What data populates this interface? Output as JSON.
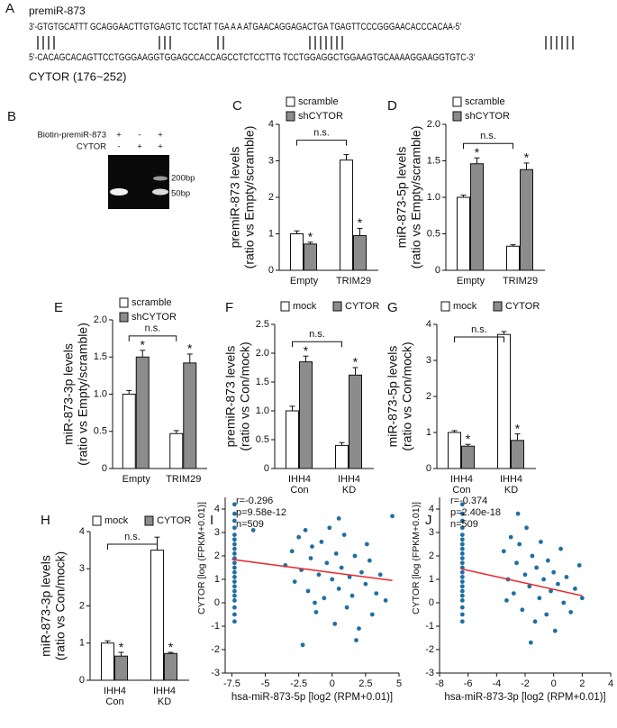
{
  "panel_a": {
    "label": "A",
    "title": "premiR-873",
    "strand1": "3'-GTGTGCATTT GCAGGAACTTGTGAGTC TCCTAT TGA A A ATGAACAGGAGACTGA TGAGTTCCCGGGAACACCCACAA-5'",
    "strand2": "5'-CACAGCACAGTTCCTGGGAAGGTGGAGCCACCAGCCTCTCCTTG TCCTGGAGGCTGGAAGTGCAAAAGGAAGGTGTC-3'",
    "caption": "CYTOR (176~252)"
  },
  "panel_b": {
    "label": "B",
    "rows": [
      {
        "label": "Biotin-premiR-873",
        "signs": [
          "+",
          "-",
          "+"
        ]
      },
      {
        "label": "CYTOR",
        "signs": [
          "-",
          "+",
          "+"
        ]
      }
    ],
    "markers": [
      "200bp",
      "50bp"
    ]
  },
  "chart_data": [
    {
      "type": "bar",
      "panel": "C",
      "ylabel": [
        "premiR-873 levels",
        "(ratio vs Empty/scramble)"
      ],
      "categories": [
        "Empty",
        "TRIM29"
      ],
      "series": [
        {
          "name": "scramble",
          "color": "#ffffff",
          "values": [
            1.0,
            3.02
          ],
          "errors": [
            0.08,
            0.15
          ]
        },
        {
          "name": "shCYTOR",
          "color": "#8c8c8c",
          "values": [
            0.72,
            0.95
          ],
          "errors": [
            0.05,
            0.2
          ],
          "stars": [
            "*",
            "*"
          ]
        }
      ],
      "ylim": [
        0,
        4
      ],
      "yticks": [
        0,
        1,
        2,
        3,
        4
      ],
      "bracket": "n.s."
    },
    {
      "type": "bar",
      "panel": "D",
      "ylabel": [
        "miR-873-5p levels",
        "(ratio vs Empty/scramble)"
      ],
      "categories": [
        "Empty",
        "TRIM29"
      ],
      "series": [
        {
          "name": "scramble",
          "color": "#ffffff",
          "values": [
            1.0,
            0.33
          ],
          "errors": [
            0.03,
            0.02
          ]
        },
        {
          "name": "shCYTOR",
          "color": "#8c8c8c",
          "values": [
            1.46,
            1.38
          ],
          "errors": [
            0.08,
            0.09
          ],
          "stars": [
            "*",
            "*"
          ]
        }
      ],
      "ylim": [
        0,
        2
      ],
      "yticks": [
        0,
        0.5,
        {
          "value": 1,
          "label": "1.0"
        },
        1.5,
        {
          "value": 2,
          "label": "2.0"
        }
      ],
      "bracket": "n.s."
    },
    {
      "type": "bar",
      "panel": "E",
      "ylabel": [
        "miR-873-3p levels",
        "(ratio vs Empty/scramble)"
      ],
      "categories": [
        "Empty",
        "TRIM29"
      ],
      "series": [
        {
          "name": "scramble",
          "color": "#ffffff",
          "values": [
            1.0,
            0.47
          ],
          "errors": [
            0.05,
            0.04
          ]
        },
        {
          "name": "shCYTOR",
          "color": "#8c8c8c",
          "values": [
            1.5,
            1.42
          ],
          "errors": [
            0.09,
            0.12
          ],
          "stars": [
            "*",
            "*"
          ]
        }
      ],
      "ylim": [
        0,
        2
      ],
      "yticks": [
        0,
        0.5,
        {
          "value": 1,
          "label": "1.0"
        },
        1.5,
        {
          "value": 2,
          "label": "2.0"
        }
      ],
      "bracket": "n.s."
    },
    {
      "type": "bar",
      "panel": "F",
      "ylabel": [
        "premiR-873 levels",
        "(ratio vs Con/mock)"
      ],
      "categories": [
        "IHH4 Con",
        "IHH4 KD"
      ],
      "series": [
        {
          "name": "mock",
          "color": "#ffffff",
          "values": [
            1.0,
            0.4
          ],
          "errors": [
            0.08,
            0.05
          ]
        },
        {
          "name": "CYTOR",
          "color": "#8c8c8c",
          "values": [
            1.85,
            1.62
          ],
          "errors": [
            0.1,
            0.13
          ],
          "stars": [
            "*",
            "*"
          ]
        }
      ],
      "ylim": [
        0,
        2.5
      ],
      "yticks": [
        0,
        0.5,
        {
          "value": 1,
          "label": "1.0"
        },
        1.5,
        {
          "value": 2,
          "label": "2.0"
        },
        2.5
      ],
      "bracket": "n.s."
    },
    {
      "type": "bar",
      "panel": "G",
      "ylabel": [
        "miR-873-5p levels",
        "(ratio vs Con/mock)"
      ],
      "categories": [
        "IHH4 Con",
        "IHH4 KD"
      ],
      "series": [
        {
          "name": "mock",
          "color": "#ffffff",
          "values": [
            1.0,
            3.72
          ],
          "errors": [
            0.05,
            0.08
          ]
        },
        {
          "name": "CYTOR",
          "color": "#8c8c8c",
          "values": [
            0.62,
            0.78
          ],
          "errors": [
            0.05,
            0.18
          ],
          "stars": [
            "*",
            "*"
          ]
        }
      ],
      "ylim": [
        0,
        4
      ],
      "yticks": [
        0,
        1,
        2,
        3,
        4
      ],
      "bracket": "n.s."
    },
    {
      "type": "bar",
      "panel": "H",
      "ylabel": [
        "miR-873-3p levels",
        "(ratio vs Con/mock)"
      ],
      "categories": [
        "IHH4 Con",
        "IHH4 KD"
      ],
      "series": [
        {
          "name": "mock",
          "color": "#ffffff",
          "values": [
            1.0,
            3.5
          ],
          "errors": [
            0.06,
            0.35
          ]
        },
        {
          "name": "CYTOR",
          "color": "#8c8c8c",
          "values": [
            0.65,
            0.72
          ],
          "errors": [
            0.1,
            0.03
          ],
          "stars": [
            "*",
            "*"
          ]
        }
      ],
      "ylim": [
        0,
        4
      ],
      "yticks": [
        0,
        1,
        2,
        3,
        4
      ],
      "bracket": "n.s."
    },
    {
      "type": "scatter",
      "panel": "I",
      "xlabel": "hsa-miR-873-5p [log2 (RPM+0.01)]",
      "ylabel": "CYTOR [log (FPKM+0.01)]",
      "annotations": [
        "r=-0.296",
        "p=9.58e-12",
        "n=509"
      ],
      "color": "#1f6fa3",
      "fit_color": "#e8262b",
      "x": [
        -7.3,
        -7.3,
        -7.3,
        -7.3,
        -7.3,
        -7.3,
        -7.3,
        -7.3,
        -7.3,
        -7.3,
        -7.3,
        -7.3,
        -7.3,
        -7.3,
        -7.3,
        -7.3,
        -7.3,
        -7.3,
        -7.3,
        -7.3,
        -7.3,
        -7.3,
        -3.5,
        -3,
        -2.8,
        -2.5,
        -2.3,
        -2,
        -1.8,
        -1.6,
        -1.5,
        -1.2,
        -1,
        -0.8,
        -0.6,
        -0.4,
        -0.2,
        0,
        0.2,
        0.3,
        0.5,
        0.7,
        0.9,
        1.1,
        1.3,
        1.5,
        1.7,
        2,
        2.2,
        2.5,
        2.8,
        3,
        3.3,
        3.6,
        4,
        4.5,
        -2.2,
        -5.9,
        0.5,
        1.8,
        -1.3,
        2.6
      ],
      "y": [
        4.2,
        3.8,
        3.5,
        3.2,
        2.9,
        2.7,
        2.5,
        2.3,
        2.1,
        1.9,
        1.7,
        1.5,
        1.3,
        1.1,
        0.9,
        0.7,
        0.5,
        0.3,
        0.1,
        -0.2,
        -0.5,
        -0.8,
        1.6,
        2.2,
        0.9,
        2.8,
        1.4,
        3.1,
        0.5,
        1.9,
        2.4,
        -0.4,
        1.2,
        2.6,
        0.2,
        1.7,
        3.2,
        1.0,
        -0.9,
        2.1,
        0.6,
        1.5,
        2.9,
        -0.2,
        1.1,
        0.3,
        2.0,
        -1.1,
        1.3,
        0.8,
        1.8,
        -0.5,
        0.4,
        1.2,
        0.1,
        3.7,
        -1.8,
        3.1,
        3.6,
        -1.6,
        0.0,
        2.5
      ],
      "fit": {
        "x": [
          -7.5,
          4.5
        ],
        "y": [
          1.85,
          0.95
        ]
      },
      "xlim": [
        -8,
        5
      ],
      "xticks": [
        -7.5,
        -5,
        -2.5,
        0,
        2.5,
        5
      ],
      "ylim": [
        -3,
        4.5
      ],
      "yticks": [
        -3,
        -2,
        -1,
        0,
        1,
        2,
        3,
        4
      ]
    },
    {
      "type": "scatter",
      "panel": "J",
      "xlabel": "hsa-miR-873-3p [log2 (RPM+0.01)]",
      "ylabel": "CYTOR [log (FPKM+0.01)]",
      "annotations": [
        "r=-0.374",
        "p=2.40e-18",
        "n=509"
      ],
      "color": "#1f6fa3",
      "fit_color": "#e8262b",
      "x": [
        -6.4,
        -6.4,
        -6.4,
        -6.4,
        -6.4,
        -6.4,
        -6.4,
        -6.4,
        -6.4,
        -6.4,
        -6.4,
        -6.4,
        -6.4,
        -6.4,
        -6.4,
        -6.4,
        -6.4,
        -6.4,
        -6.4,
        -6.4,
        -6.4,
        -6.4,
        -3.5,
        -3.2,
        -3,
        -2.8,
        -2.6,
        -2.4,
        -2.2,
        -2,
        -1.9,
        -1.7,
        -1.5,
        -1.3,
        -1.2,
        -1,
        -0.9,
        -0.7,
        -0.5,
        -0.4,
        -0.2,
        0,
        0.1,
        0.3,
        0.5,
        0.7,
        0.9,
        1.2,
        1.5,
        1.8,
        -2.5,
        -1.6,
        2,
        -3.3
      ],
      "y": [
        4.2,
        3.8,
        3.5,
        3.2,
        2.9,
        2.7,
        2.5,
        2.3,
        2.1,
        1.9,
        1.7,
        1.5,
        1.3,
        1.1,
        0.9,
        0.7,
        0.5,
        0.3,
        0.1,
        -0.2,
        -0.5,
        -0.8,
        2.2,
        1.0,
        2.8,
        0.4,
        1.7,
        2.5,
        -0.3,
        1.2,
        3.2,
        0.7,
        2.0,
        -0.8,
        1.5,
        0.2,
        2.6,
        1.0,
        -0.5,
        1.8,
        0.5,
        1.3,
        -1.2,
        0.8,
        2.3,
        0.0,
        1.1,
        -0.4,
        0.6,
        1.6,
        3.8,
        -1.7,
        0.2,
        0.1
      ],
      "fit": {
        "x": [
          -6.5,
          2
        ],
        "y": [
          1.45,
          0.3
        ]
      },
      "xlim": [
        -8,
        4
      ],
      "xticks": [
        -8,
        -6,
        -4,
        -2,
        0,
        2,
        4
      ],
      "ylim": [
        -3,
        4.5
      ],
      "yticks": [
        -3,
        -2,
        -1,
        0,
        1,
        2,
        3,
        4
      ]
    }
  ]
}
